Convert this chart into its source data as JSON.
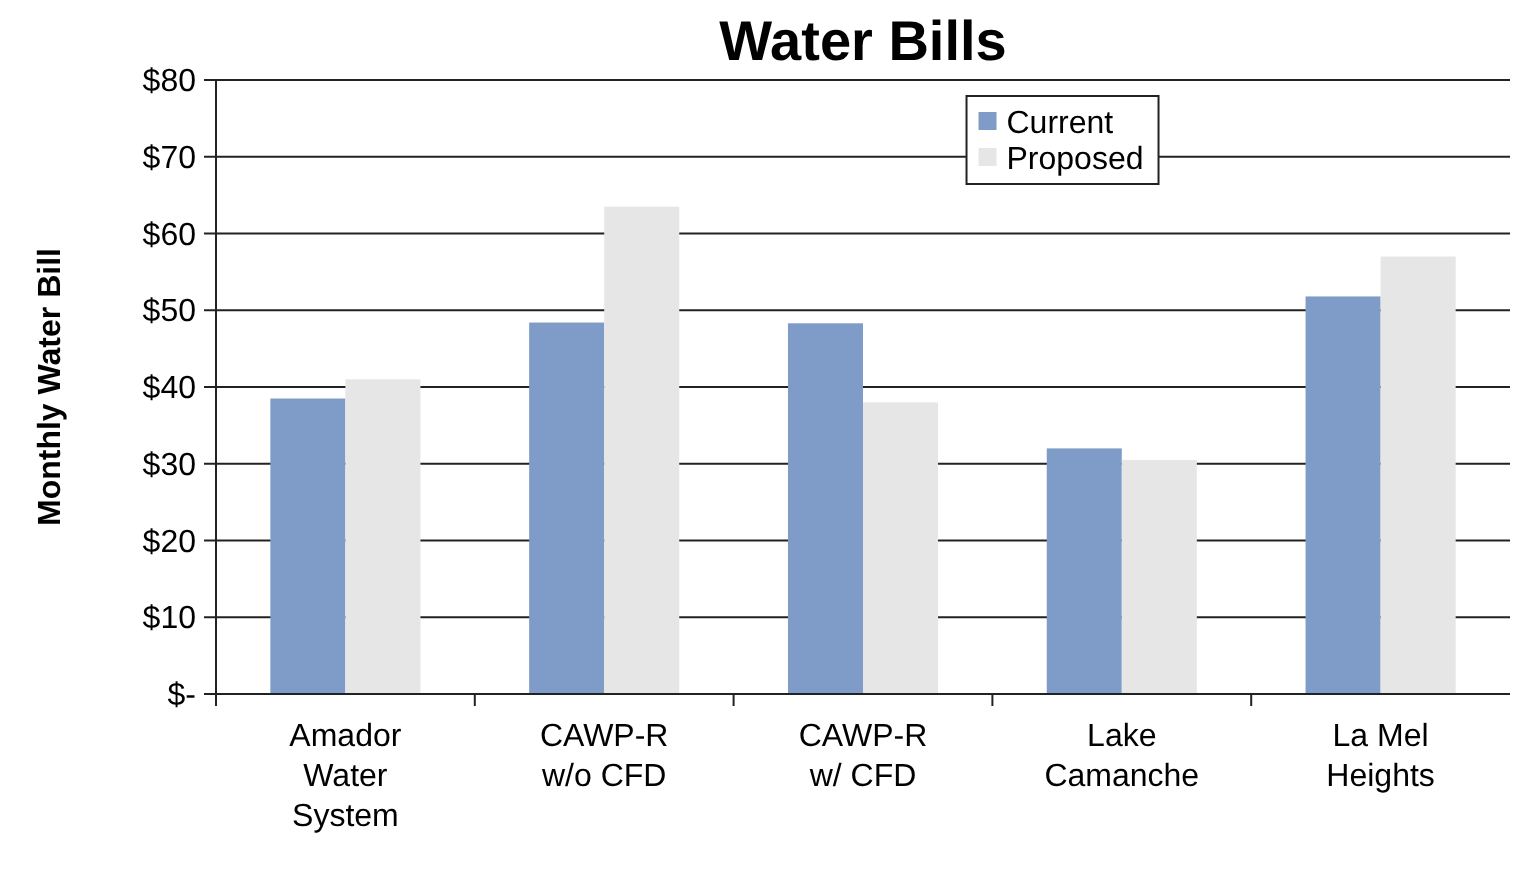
{
  "chart_data": {
    "type": "bar",
    "title": "Water Bills",
    "ylabel": "Monthly Water Bill",
    "categories": [
      "Amador\nWater\nSystem",
      "CAWP-R\nw/o CFD",
      "CAWP-R\nw/ CFD",
      "Lake\nCamanche",
      "La Mel\nHeights"
    ],
    "series": [
      {
        "name": "Current",
        "color": "#7f9cc9",
        "values": [
          38.5,
          48.4,
          48.3,
          32,
          51.8
        ]
      },
      {
        "name": "Proposed",
        "color": "#e6e6e6",
        "values": [
          41,
          63.5,
          38,
          30.5,
          57
        ]
      }
    ],
    "ylim": [
      0,
      80
    ],
    "yticks": [
      {
        "value": 0,
        "label": "$-"
      },
      {
        "value": 10,
        "label": "$10"
      },
      {
        "value": 20,
        "label": "$20"
      },
      {
        "value": 30,
        "label": "$30"
      },
      {
        "value": 40,
        "label": "$40"
      },
      {
        "value": 50,
        "label": "$50"
      },
      {
        "value": 60,
        "label": "$60"
      },
      {
        "value": 70,
        "label": "$70"
      },
      {
        "value": 80,
        "label": "$80"
      }
    ],
    "grid": "y",
    "legend": "top right"
  }
}
